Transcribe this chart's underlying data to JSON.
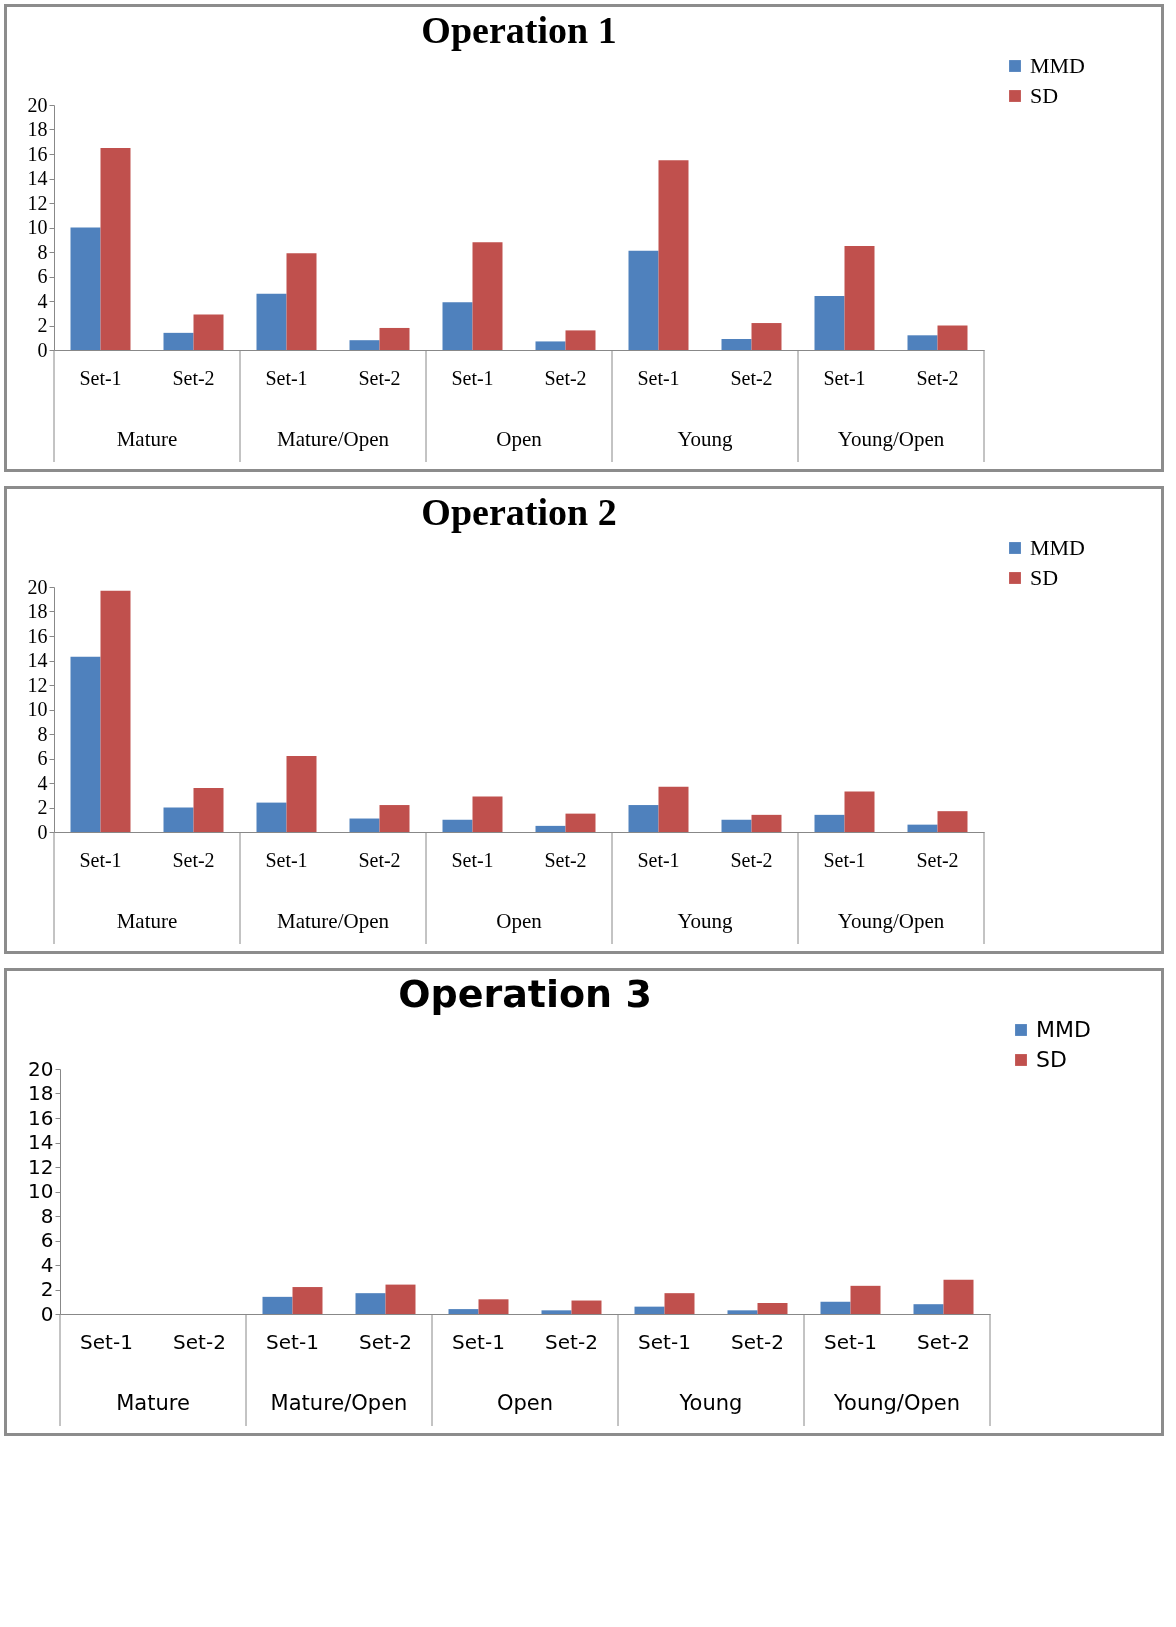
{
  "chart_data": [
    {
      "type": "bar",
      "title": "Operation 1",
      "categories": [
        "Set-1",
        "Set-2",
        "Set-1",
        "Set-2",
        "Set-1",
        "Set-2",
        "Set-1",
        "Set-2",
        "Set-1",
        "Set-2"
      ],
      "annotations": [
        "Mature",
        "Mature/Open",
        "Open",
        "Young",
        "Young/Open"
      ],
      "ylim": [
        0,
        20
      ],
      "yticks": [
        0,
        2,
        4,
        6,
        8,
        10,
        12,
        14,
        16,
        18,
        20
      ],
      "grid": false,
      "legend": "top right",
      "series": [
        {
          "name": "MMD",
          "color": "#4f81bd",
          "values": [
            10.0,
            1.4,
            4.6,
            0.8,
            3.9,
            0.7,
            8.1,
            0.9,
            4.4,
            1.2
          ]
        },
        {
          "name": "SD",
          "color": "#c0504d",
          "values": [
            16.5,
            2.9,
            7.9,
            1.8,
            8.8,
            1.6,
            15.5,
            2.2,
            8.5,
            2.0
          ]
        }
      ]
    },
    {
      "type": "bar",
      "title": "Operation 2",
      "categories": [
        "Set-1",
        "Set-2",
        "Set-1",
        "Set-2",
        "Set-1",
        "Set-2",
        "Set-1",
        "Set-2",
        "Set-1",
        "Set-2"
      ],
      "annotations": [
        "Mature",
        "Mature/Open",
        "Open",
        "Young",
        "Young/Open"
      ],
      "ylim": [
        0,
        20
      ],
      "yticks": [
        0,
        2,
        4,
        6,
        8,
        10,
        12,
        14,
        16,
        18,
        20
      ],
      "grid": false,
      "legend": "top right",
      "series": [
        {
          "name": "MMD",
          "color": "#4f81bd",
          "values": [
            14.3,
            2.0,
            2.4,
            1.1,
            1.0,
            0.5,
            2.2,
            1.0,
            1.4,
            0.6
          ]
        },
        {
          "name": "SD",
          "color": "#c0504d",
          "values": [
            19.7,
            3.6,
            6.2,
            2.2,
            2.9,
            1.5,
            3.7,
            1.4,
            3.3,
            1.7
          ]
        }
      ]
    },
    {
      "type": "bar",
      "title": "Operation 3",
      "categories": [
        "Set-1",
        "Set-2",
        "Set-1",
        "Set-2",
        "Set-1",
        "Set-2",
        "Set-1",
        "Set-2",
        "Set-1",
        "Set-2"
      ],
      "annotations": [
        "Mature",
        "Mature/Open",
        "Open",
        "Young",
        "Young/Open"
      ],
      "ylim": [
        0,
        20
      ],
      "yticks": [
        0,
        2,
        4,
        6,
        8,
        10,
        12,
        14,
        16,
        18,
        20
      ],
      "grid": false,
      "legend": "top right",
      "series": [
        {
          "name": "MMD",
          "color": "#4f81bd",
          "values": [
            null,
            null,
            1.4,
            1.7,
            0.4,
            0.3,
            0.6,
            0.3,
            1.0,
            0.8
          ]
        },
        {
          "name": "SD",
          "color": "#c0504d",
          "values": [
            null,
            null,
            2.2,
            2.4,
            1.2,
            1.1,
            1.7,
            0.9,
            2.3,
            2.8
          ]
        }
      ]
    }
  ]
}
